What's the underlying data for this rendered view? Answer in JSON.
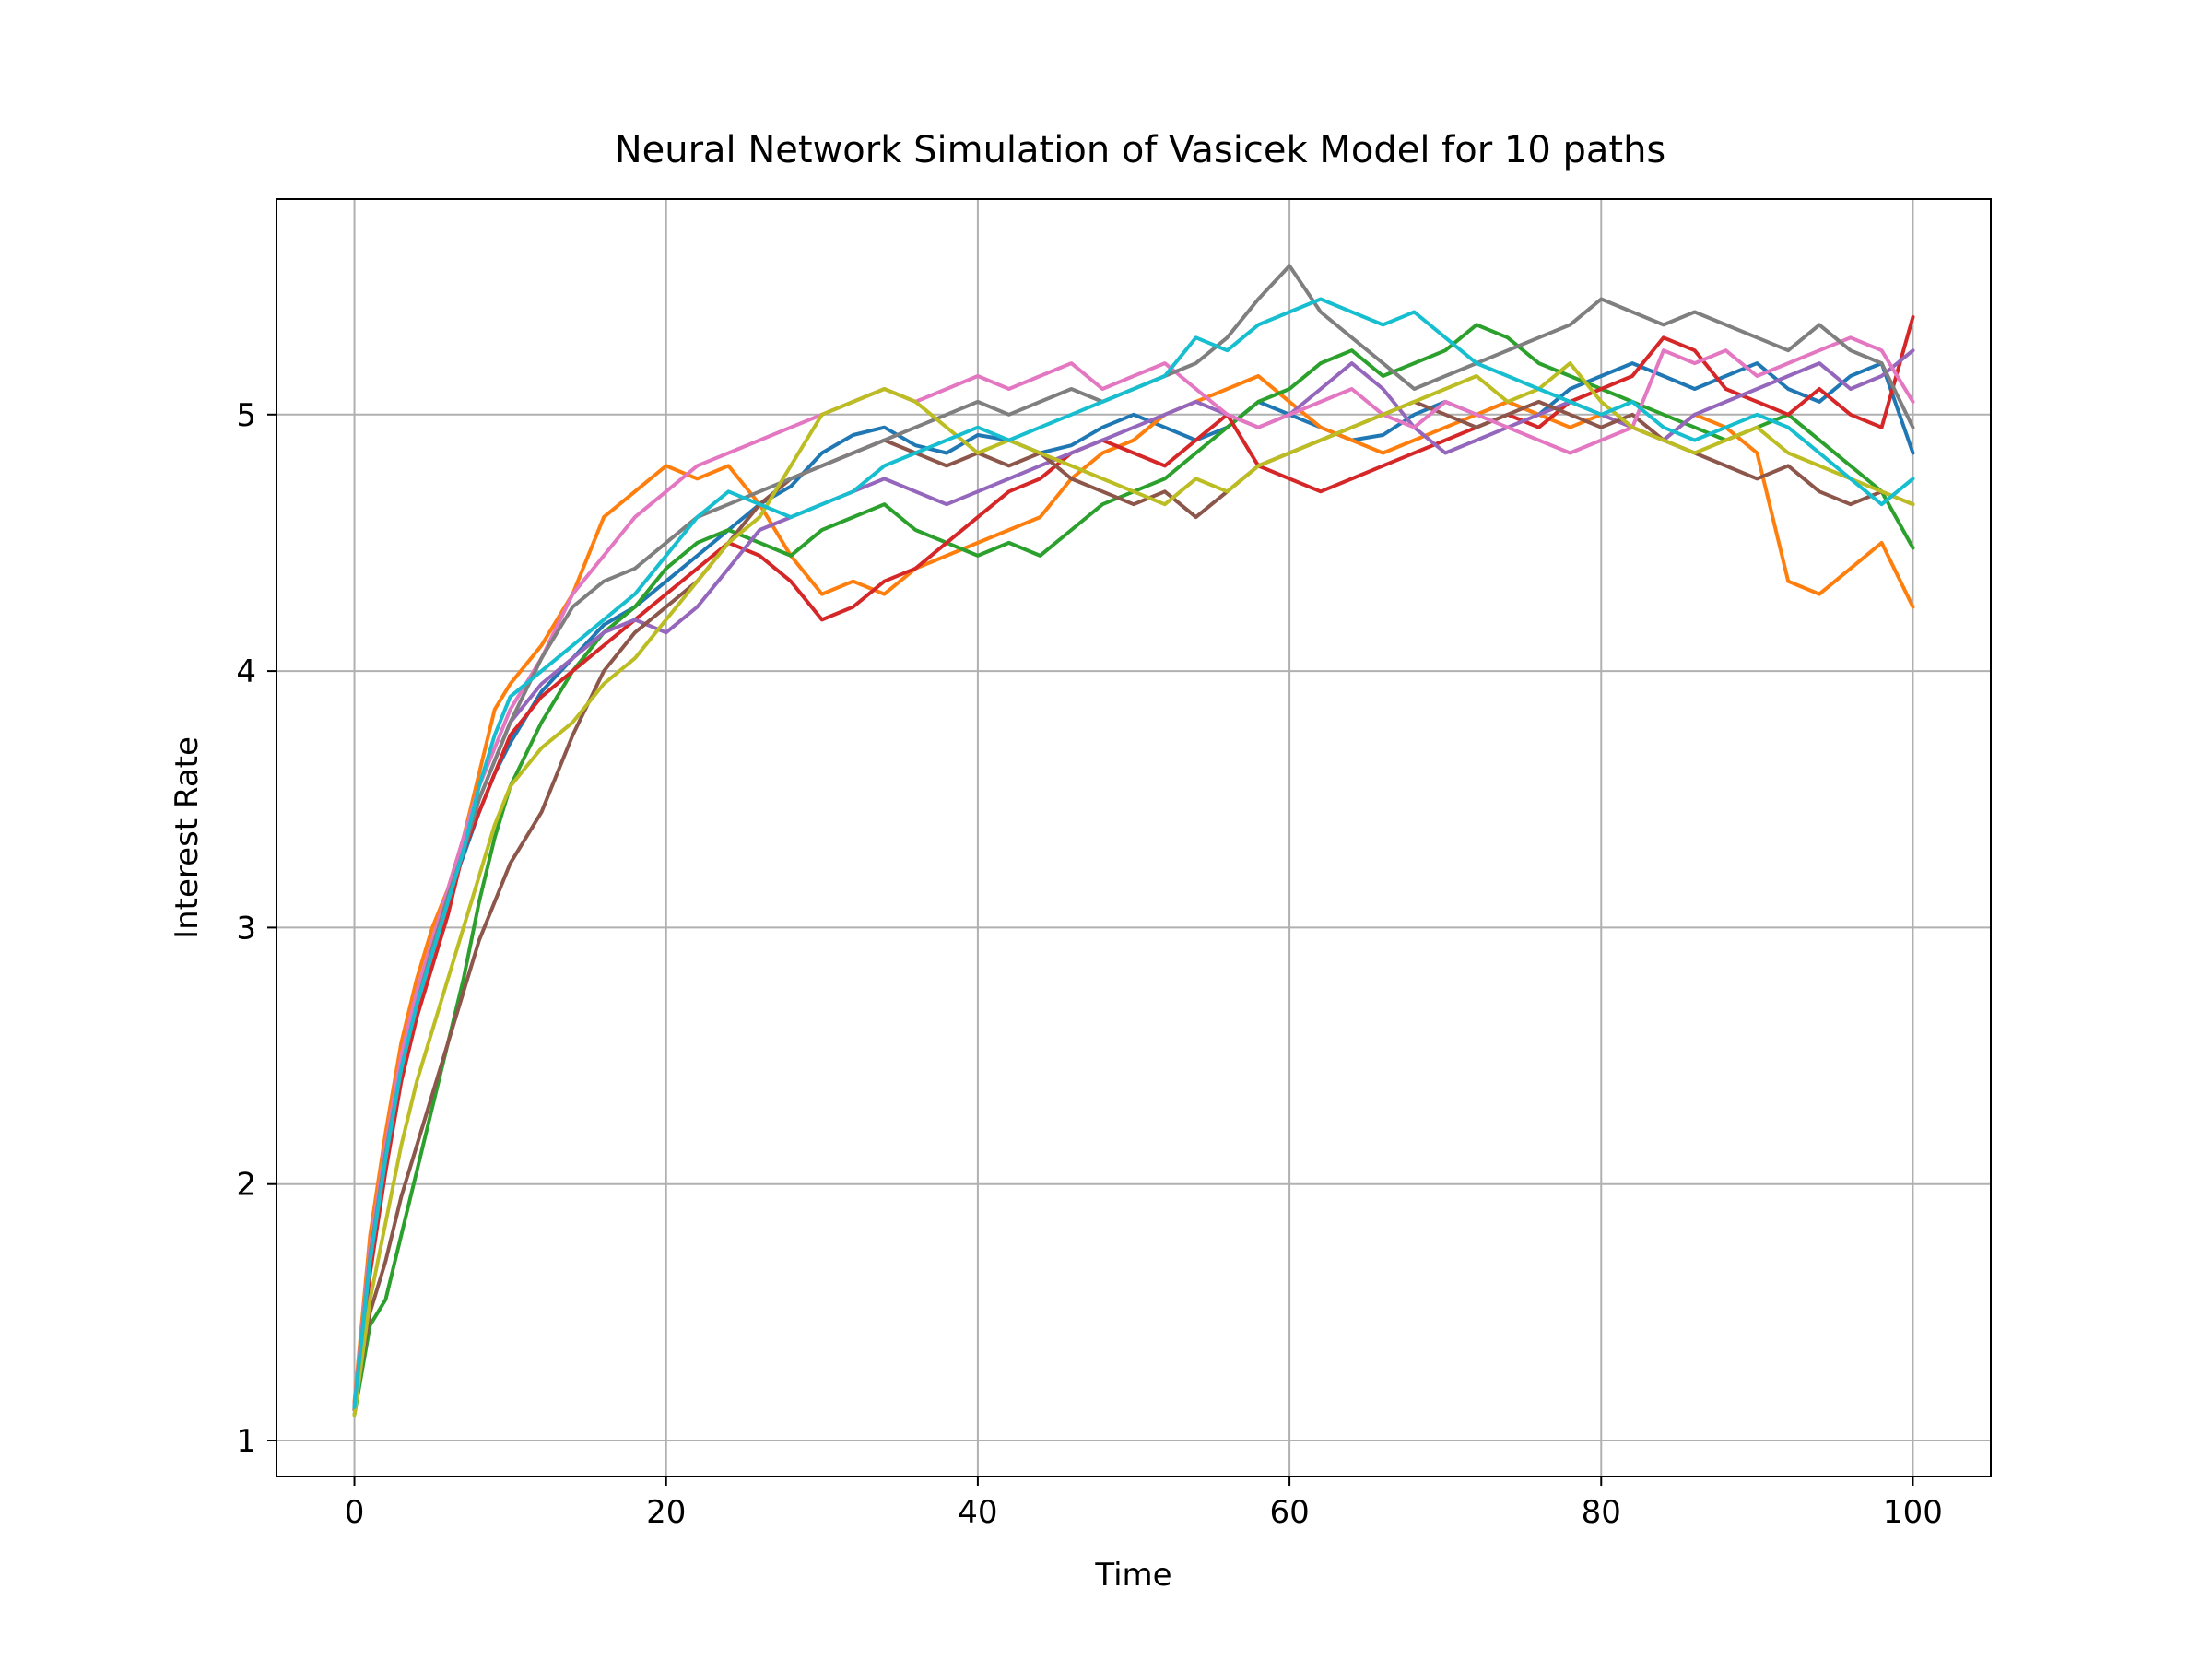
{
  "chart_data": {
    "type": "line",
    "title": "Neural Network Simulation of Vasicek Model for 10 paths",
    "xlabel": "Time",
    "ylabel": "Interest Rate",
    "xlim": [
      -5,
      105
    ],
    "ylim": [
      0.86,
      5.84
    ],
    "xticks": [
      0,
      20,
      40,
      60,
      80,
      100
    ],
    "yticks": [
      1,
      2,
      3,
      4,
      5
    ],
    "grid": true,
    "legend": "none",
    "x": [
      0,
      1,
      2,
      3,
      4,
      5,
      6,
      7,
      8,
      9,
      10,
      12,
      14,
      16,
      18,
      20,
      22,
      24,
      26,
      28,
      30,
      32,
      34,
      36,
      38,
      40,
      42,
      44,
      46,
      48,
      50,
      52,
      54,
      56,
      58,
      60,
      62,
      64,
      66,
      68,
      70,
      72,
      74,
      76,
      78,
      80,
      82,
      84,
      86,
      88,
      90,
      92,
      94,
      96,
      98,
      100
    ],
    "series": [
      {
        "color": "#1f77b4",
        "values": [
          1.12,
          1.75,
          2.15,
          2.48,
          2.72,
          2.95,
          3.12,
          3.28,
          3.45,
          3.6,
          3.72,
          3.92,
          4.05,
          4.18,
          4.25,
          4.35,
          4.45,
          4.55,
          4.65,
          4.72,
          4.85,
          4.92,
          4.95,
          4.88,
          4.85,
          4.92,
          4.9,
          4.85,
          4.88,
          4.95,
          5.0,
          4.95,
          4.9,
          4.95,
          5.05,
          5.0,
          4.95,
          4.9,
          4.92,
          5.0,
          5.05,
          5.0,
          5.05,
          5.0,
          5.1,
          5.15,
          5.2,
          5.15,
          5.1,
          5.15,
          5.2,
          5.1,
          5.05,
          5.15,
          5.2,
          4.85
        ]
      },
      {
        "color": "#ff7f0e",
        "values": [
          1.15,
          1.8,
          2.2,
          2.55,
          2.8,
          3.0,
          3.15,
          3.35,
          3.6,
          3.85,
          3.95,
          4.1,
          4.3,
          4.6,
          4.7,
          4.8,
          4.75,
          4.8,
          4.65,
          4.45,
          4.3,
          4.35,
          4.3,
          4.4,
          4.45,
          4.5,
          4.55,
          4.6,
          4.75,
          4.85,
          4.9,
          5.0,
          5.05,
          5.1,
          5.15,
          5.05,
          4.95,
          4.9,
          4.85,
          4.9,
          4.95,
          5.0,
          5.05,
          5.0,
          4.95,
          5.0,
          4.95,
          4.9,
          5.0,
          4.95,
          4.85,
          4.35,
          4.3,
          4.4,
          4.5,
          4.25
        ]
      },
      {
        "color": "#2ca02c",
        "values": [
          1.1,
          1.45,
          1.55,
          1.8,
          2.05,
          2.3,
          2.55,
          2.8,
          3.1,
          3.35,
          3.55,
          3.8,
          4.0,
          4.15,
          4.25,
          4.4,
          4.5,
          4.55,
          4.5,
          4.45,
          4.55,
          4.6,
          4.65,
          4.55,
          4.5,
          4.45,
          4.5,
          4.45,
          4.55,
          4.65,
          4.7,
          4.75,
          4.85,
          4.95,
          5.05,
          5.1,
          5.2,
          5.25,
          5.15,
          5.2,
          5.25,
          5.35,
          5.3,
          5.2,
          5.15,
          5.1,
          5.05,
          5.0,
          4.95,
          4.9,
          4.95,
          5.0,
          4.9,
          4.8,
          4.7,
          4.48
        ]
      },
      {
        "color": "#d62728",
        "values": [
          1.13,
          1.65,
          2.05,
          2.4,
          2.65,
          2.85,
          3.05,
          3.3,
          3.45,
          3.6,
          3.75,
          3.9,
          4.0,
          4.1,
          4.2,
          4.3,
          4.4,
          4.5,
          4.45,
          4.35,
          4.2,
          4.25,
          4.35,
          4.4,
          4.5,
          4.6,
          4.7,
          4.75,
          4.85,
          4.9,
          4.85,
          4.8,
          4.9,
          5.0,
          4.8,
          4.75,
          4.7,
          4.75,
          4.8,
          4.85,
          4.9,
          4.95,
          5.0,
          4.95,
          5.05,
          5.1,
          5.15,
          5.3,
          5.25,
          5.1,
          5.05,
          5.0,
          5.1,
          5.0,
          4.95,
          5.38
        ]
      },
      {
        "color": "#9467bd",
        "values": [
          1.12,
          1.7,
          2.1,
          2.45,
          2.7,
          2.9,
          3.1,
          3.3,
          3.5,
          3.65,
          3.8,
          3.95,
          4.05,
          4.15,
          4.2,
          4.15,
          4.25,
          4.4,
          4.55,
          4.6,
          4.65,
          4.7,
          4.75,
          4.7,
          4.65,
          4.7,
          4.75,
          4.8,
          4.85,
          4.9,
          4.95,
          5.0,
          5.05,
          5.0,
          4.95,
          5.0,
          5.1,
          5.2,
          5.1,
          4.95,
          4.85,
          4.9,
          4.95,
          5.0,
          5.05,
          5.0,
          4.95,
          4.9,
          5.0,
          5.05,
          5.1,
          5.15,
          5.2,
          5.1,
          5.15,
          5.25
        ]
      },
      {
        "color": "#8c564b",
        "values": [
          1.12,
          1.5,
          1.7,
          1.95,
          2.15,
          2.35,
          2.55,
          2.75,
          2.95,
          3.1,
          3.25,
          3.45,
          3.75,
          4.0,
          4.15,
          4.25,
          4.35,
          4.5,
          4.65,
          4.75,
          4.8,
          4.85,
          4.9,
          4.85,
          4.8,
          4.85,
          4.8,
          4.85,
          4.75,
          4.7,
          4.65,
          4.7,
          4.6,
          4.7,
          4.8,
          4.85,
          4.9,
          4.95,
          5.0,
          5.05,
          5.0,
          4.95,
          5.0,
          5.05,
          5.0,
          4.95,
          5.0,
          4.9,
          4.85,
          4.8,
          4.75,
          4.8,
          4.7,
          4.65,
          4.7,
          4.65
        ]
      },
      {
        "color": "#e377c2",
        "values": [
          1.14,
          1.75,
          2.15,
          2.5,
          2.75,
          2.95,
          3.15,
          3.35,
          3.55,
          3.7,
          3.85,
          4.05,
          4.3,
          4.45,
          4.6,
          4.7,
          4.8,
          4.85,
          4.9,
          4.95,
          5.0,
          5.05,
          5.1,
          5.05,
          5.1,
          5.15,
          5.1,
          5.15,
          5.2,
          5.1,
          5.15,
          5.2,
          5.1,
          5.0,
          4.95,
          5.0,
          5.05,
          5.1,
          5.0,
          4.95,
          5.05,
          5.0,
          4.95,
          4.9,
          4.85,
          4.9,
          4.95,
          5.25,
          5.2,
          5.25,
          5.15,
          5.2,
          5.25,
          5.3,
          5.25,
          5.05
        ]
      },
      {
        "color": "#7f7f7f",
        "values": [
          1.13,
          1.72,
          2.12,
          2.45,
          2.7,
          2.92,
          3.12,
          3.3,
          3.5,
          3.65,
          3.8,
          4.05,
          4.25,
          4.35,
          4.4,
          4.5,
          4.6,
          4.65,
          4.7,
          4.75,
          4.8,
          4.85,
          4.9,
          4.95,
          5.0,
          5.05,
          5.0,
          5.05,
          5.1,
          5.05,
          5.1,
          5.15,
          5.2,
          5.3,
          5.45,
          5.58,
          5.4,
          5.3,
          5.2,
          5.1,
          5.15,
          5.2,
          5.25,
          5.3,
          5.35,
          5.45,
          5.4,
          5.35,
          5.4,
          5.35,
          5.3,
          5.25,
          5.35,
          5.25,
          5.2,
          4.95
        ]
      },
      {
        "color": "#bcbd22",
        "values": [
          1.1,
          1.55,
          1.85,
          2.15,
          2.4,
          2.6,
          2.8,
          3.0,
          3.2,
          3.4,
          3.55,
          3.7,
          3.8,
          3.95,
          4.05,
          4.2,
          4.35,
          4.5,
          4.6,
          4.8,
          5.0,
          5.05,
          5.1,
          5.05,
          4.95,
          4.85,
          4.9,
          4.85,
          4.8,
          4.75,
          4.7,
          4.65,
          4.75,
          4.7,
          4.8,
          4.85,
          4.9,
          4.95,
          5.0,
          5.05,
          5.1,
          5.15,
          5.05,
          5.1,
          5.2,
          5.05,
          4.95,
          4.9,
          4.85,
          4.9,
          4.95,
          4.85,
          4.8,
          4.75,
          4.7,
          4.65
        ]
      },
      {
        "color": "#17becf",
        "values": [
          1.13,
          1.7,
          2.1,
          2.45,
          2.7,
          2.9,
          3.1,
          3.3,
          3.55,
          3.75,
          3.9,
          4.0,
          4.1,
          4.2,
          4.3,
          4.45,
          4.6,
          4.7,
          4.65,
          4.6,
          4.65,
          4.7,
          4.8,
          4.85,
          4.9,
          4.95,
          4.9,
          4.95,
          5.0,
          5.05,
          5.1,
          5.15,
          5.3,
          5.25,
          5.35,
          5.4,
          5.45,
          5.4,
          5.35,
          5.4,
          5.3,
          5.2,
          5.15,
          5.1,
          5.05,
          5.0,
          5.05,
          4.95,
          4.9,
          4.95,
          5.0,
          4.95,
          4.85,
          4.75,
          4.65,
          4.75
        ]
      }
    ]
  }
}
